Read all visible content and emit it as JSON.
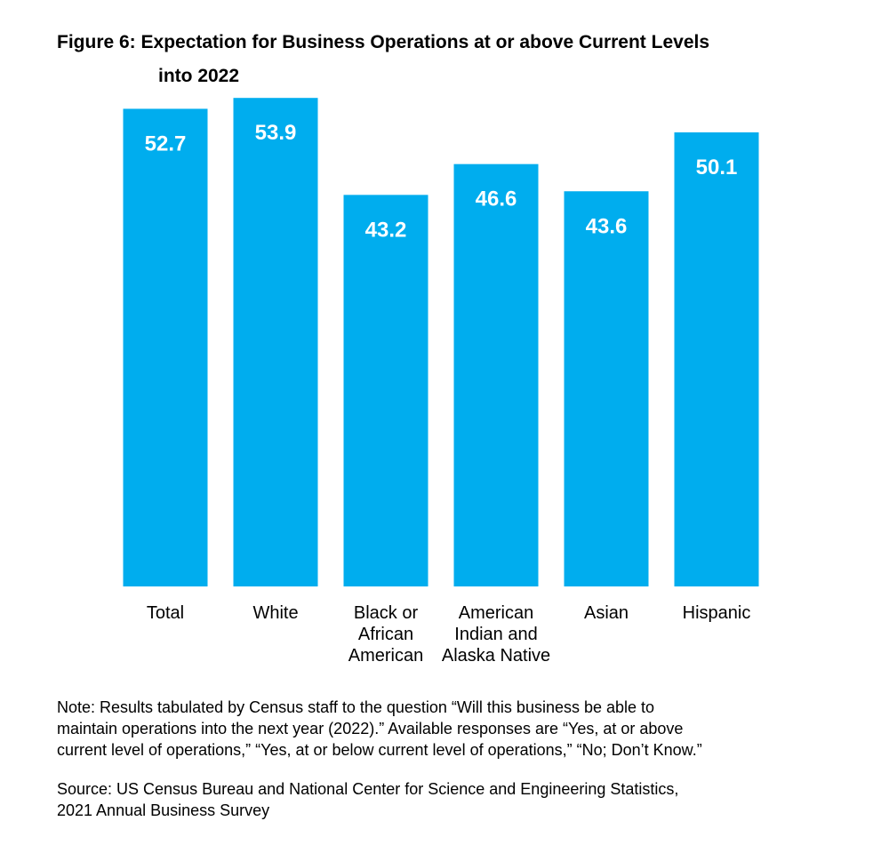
{
  "title": {
    "line1": "Figure 6:  Expectation for Business Operations at or above Current Levels",
    "line2": "into 2022"
  },
  "colors": {
    "bar": "#00adee",
    "label": "#ffffff",
    "text": "#000000"
  },
  "chart_data": {
    "type": "bar",
    "title": "Figure 6:  Expectation for Business Operations at or above Current Levels into 2022",
    "categories": [
      [
        "Total"
      ],
      [
        "White"
      ],
      [
        "Black or",
        "African",
        "American"
      ],
      [
        "American",
        "Indian and",
        "Alaska Native"
      ],
      [
        "Asian"
      ],
      [
        "Hispanic"
      ]
    ],
    "values": [
      52.7,
      53.9,
      43.2,
      46.6,
      43.6,
      50.1
    ],
    "value_labels": [
      "52.7",
      "53.9",
      "43.2",
      "46.6",
      "43.6",
      "50.1"
    ],
    "xlabel": "",
    "ylabel": "",
    "ylim": [
      0,
      54.9
    ],
    "grid": false,
    "legend": "none"
  },
  "note": {
    "lines": [
      "Note: Results tabulated by Census staff to the question “Will this business be able to",
      "maintain operations into the next year (2022).” Available responses are “Yes, at or above",
      "current level of operations,” “Yes, at or below current level of operations,” “No; Don’t Know.”"
    ]
  },
  "source": {
    "lines": [
      "Source: US Census Bureau and National Center for Science and Engineering Statistics,",
      "2021 Annual Business Survey"
    ]
  }
}
